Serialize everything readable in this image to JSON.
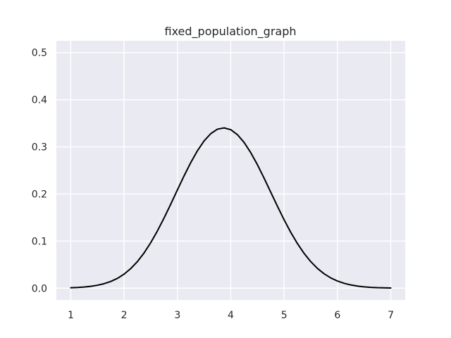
{
  "chart_data": {
    "type": "line",
    "title": "fixed_population_graph",
    "xlabel": "",
    "ylabel": "",
    "xlim": [
      0.73,
      7.27
    ],
    "ylim": [
      -0.025,
      0.525
    ],
    "xticks": [
      1,
      2,
      3,
      4,
      5,
      6,
      7
    ],
    "yticks": [
      0.0,
      0.1,
      0.2,
      0.3,
      0.4,
      0.5
    ],
    "ytick_labels": [
      "0.0",
      "0.1",
      "0.2",
      "0.3",
      "0.4",
      "0.5"
    ],
    "grid": true,
    "legend": false,
    "colors": {
      "background": "#eaeaf2",
      "grid": "#ffffff",
      "line": "#000000",
      "text": "#262626"
    },
    "series": [
      {
        "x": [
          1.0,
          1.125,
          1.25,
          1.375,
          1.5,
          1.625,
          1.75,
          1.875,
          2.0,
          2.125,
          2.25,
          2.375,
          2.5,
          2.625,
          2.75,
          2.875,
          3.0,
          3.125,
          3.25,
          3.375,
          3.5,
          3.625,
          3.75,
          3.875,
          4.0,
          4.125,
          4.25,
          4.375,
          4.5,
          4.625,
          4.75,
          4.875,
          5.0,
          5.125,
          5.25,
          5.375,
          5.5,
          5.625,
          5.75,
          5.875,
          6.0,
          6.125,
          6.25,
          6.375,
          6.5,
          6.625,
          6.75,
          6.875,
          7.0
        ],
        "y": [
          0.0009,
          0.0015,
          0.0025,
          0.004,
          0.0063,
          0.0096,
          0.0143,
          0.0209,
          0.0299,
          0.0417,
          0.0566,
          0.075,
          0.0968,
          0.1217,
          0.1492,
          0.1786,
          0.2088,
          0.2386,
          0.2667,
          0.2918,
          0.3126,
          0.3281,
          0.3375,
          0.3402,
          0.3364,
          0.3258,
          0.3093,
          0.2876,
          0.2619,
          0.2334,
          0.2036,
          0.1738,
          0.1451,
          0.1185,
          0.0946,
          0.0738,
          0.0563,
          0.042,
          0.0306,
          0.0218,
          0.0152,
          0.0104,
          0.0069,
          0.0045,
          0.0029,
          0.0018,
          0.0011,
          0.0007,
          0.0004
        ]
      }
    ]
  }
}
